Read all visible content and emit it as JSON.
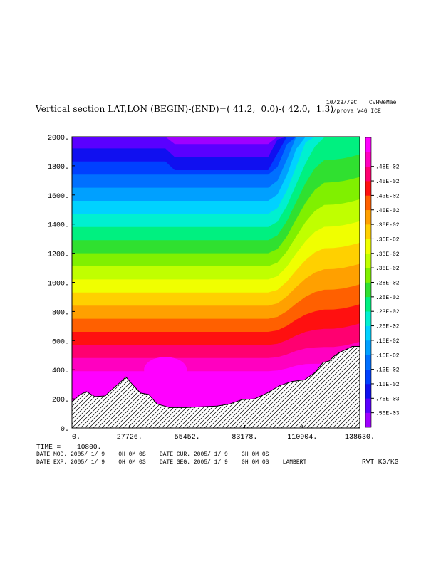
{
  "header": {
    "title": "Vertical section LAT,LON (BEGIN)-(END)=( 41.2,  0.0)-( 42.0,  1.3)",
    "date_code": "10/23//9C",
    "user": "CvHWeMae",
    "run": "../prova V46 ICE"
  },
  "footer": {
    "time_line": "TIME =    10800.",
    "date_line_1": "DATE MOD. 2005/ 1/ 9    0H 0M 0S    DATE CUR. 2005/ 1/ 9    3H 0M 0S",
    "date_line_2": "DATE EXP. 2005/ 1/ 9    0H 0M 0S    DATE SEG. 2005/ 1/ 9    0H 0M 0S    LAMBERT",
    "field_label": "RVT KG/KG"
  },
  "chart_data": {
    "type": "contour",
    "x_ticks": [
      "0.",
      "27726.",
      "55452.",
      "83178.",
      "110904.",
      "138630."
    ],
    "x_tick_values": [
      0,
      27726,
      55452,
      83178,
      110904,
      138630
    ],
    "y_ticks": [
      "0.",
      "200.",
      "400.",
      "600.",
      "800.",
      "1000.",
      "1200.",
      "1400.",
      "1600.",
      "1800.",
      "2000."
    ],
    "y_tick_values": [
      0,
      200,
      400,
      600,
      800,
      1000,
      1200,
      1400,
      1600,
      1800,
      2000
    ],
    "xlim": [
      0,
      138630
    ],
    "ylim": [
      0,
      2000
    ],
    "colorbar_labels": [
      ".50E-03",
      ".75E-03",
      ".10E-02",
      ".13E-02",
      ".15E-02",
      ".18E-02",
      ".20E-02",
      ".23E-02",
      ".25E-02",
      ".28E-02",
      ".30E-02",
      ".33E-02",
      ".35E-02",
      ".38E-02",
      ".40E-02",
      ".43E-02",
      ".45E-02",
      ".48E-02"
    ],
    "colorbar_colors": [
      "#a000ff",
      "#5a00ff",
      "#1010f0",
      "#0040ff",
      "#0070ff",
      "#00a0ff",
      "#00d2ff",
      "#00f0d0",
      "#00f080",
      "#30e030",
      "#80f000",
      "#c0ff00",
      "#f0ff00",
      "#ffd000",
      "#ffa000",
      "#ff6000",
      "#ff1010",
      "#ff0070",
      "#ff00c0",
      "#ff00ff"
    ],
    "terrain": [
      [
        0,
        180
      ],
      [
        4000,
        230
      ],
      [
        7000,
        250
      ],
      [
        11000,
        215
      ],
      [
        16000,
        220
      ],
      [
        19000,
        260
      ],
      [
        23000,
        310
      ],
      [
        26000,
        350
      ],
      [
        29000,
        300
      ],
      [
        33000,
        240
      ],
      [
        37000,
        230
      ],
      [
        41000,
        165
      ],
      [
        47000,
        140
      ],
      [
        55000,
        140
      ],
      [
        62000,
        145
      ],
      [
        70000,
        150
      ],
      [
        76000,
        165
      ],
      [
        82000,
        195
      ],
      [
        88000,
        200
      ],
      [
        94000,
        240
      ],
      [
        100000,
        290
      ],
      [
        106000,
        320
      ],
      [
        112000,
        330
      ],
      [
        117000,
        380
      ],
      [
        121000,
        450
      ],
      [
        124000,
        460
      ],
      [
        126000,
        490
      ],
      [
        129000,
        520
      ],
      [
        133000,
        545
      ],
      [
        135000,
        560
      ],
      [
        138630,
        560
      ]
    ]
  }
}
